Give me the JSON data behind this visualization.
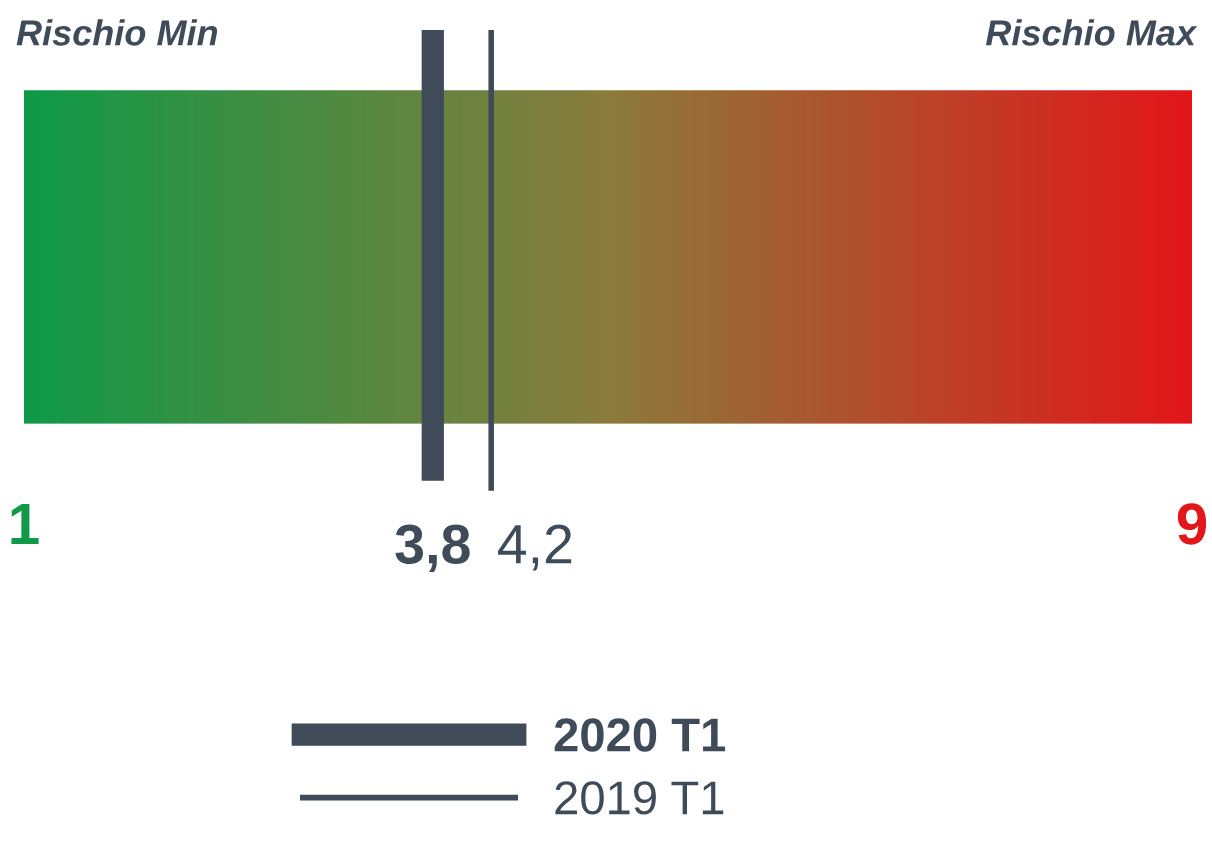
{
  "chart_data": {
    "type": "bar",
    "orientation": "horizontal",
    "categories": [
      null
    ],
    "values": [
      8
    ],
    "base": [
      1
    ],
    "colors": [
      "#8b7b3c"
    ],
    "xlim": [
      1,
      9
    ],
    "xticks": [
      {
        "value": 1,
        "label": "1"
      },
      {
        "value": 9,
        "label": "9"
      }
    ],
    "tick_labels": "x",
    "annotations": [
      "Rischio Min",
      "Rischio Max",
      "3,8",
      "4,2"
    ],
    "ref_lines": [
      {
        "axis": "x",
        "value": 3.8,
        "label": "2020 T1",
        "color": "#3f4b58"
      },
      {
        "axis": "x",
        "value": 4.2,
        "label": "2019 T1",
        "color": "#3f4b58"
      }
    ],
    "legend": "bottom"
  }
}
